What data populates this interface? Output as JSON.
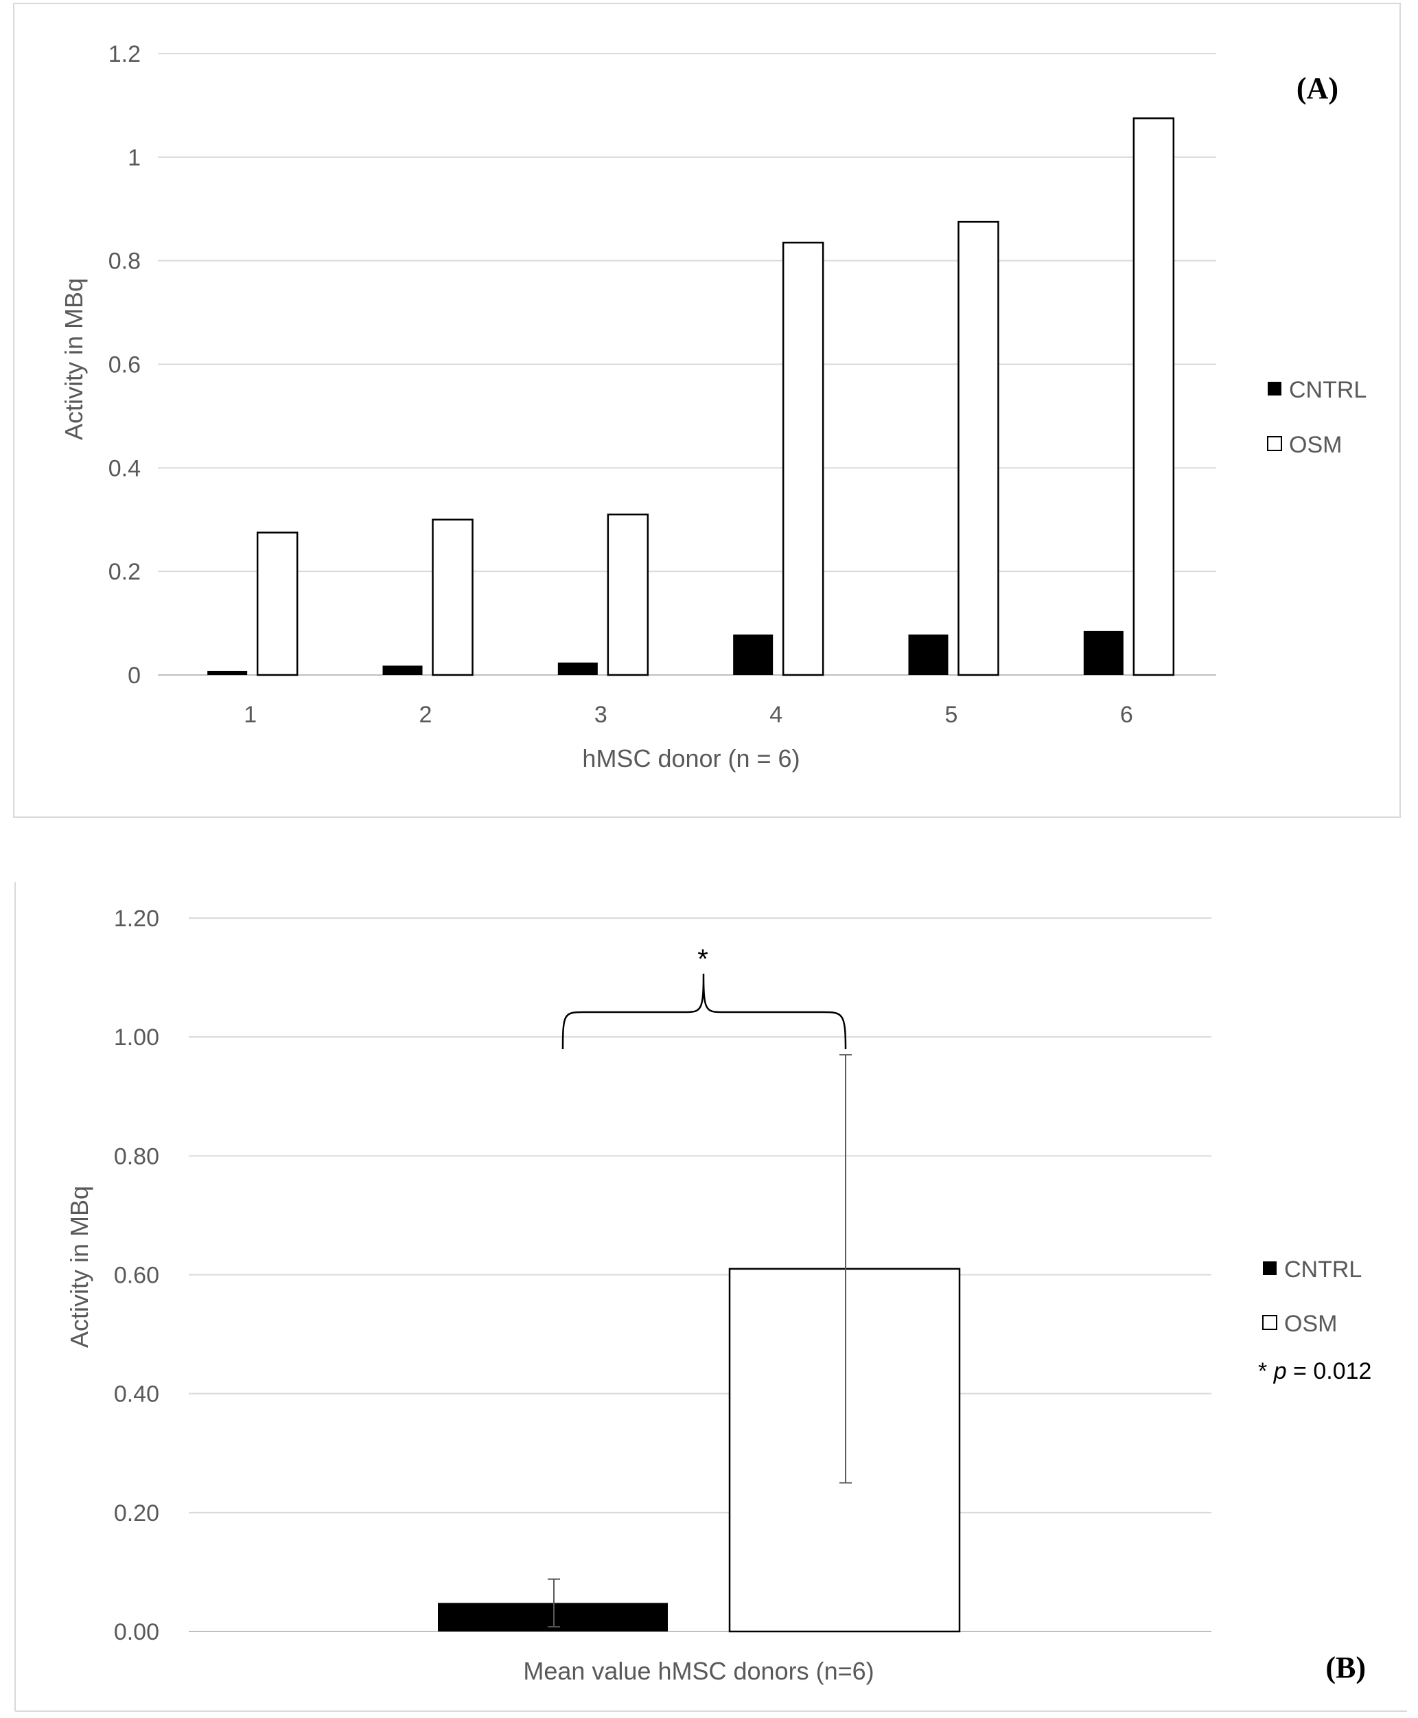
{
  "chart_data": [
    {
      "type": "bar",
      "panel_label": "(A)",
      "categories": [
        "1",
        "2",
        "3",
        "4",
        "5",
        "6"
      ],
      "series": [
        {
          "name": "CNTRL",
          "color": "#000000",
          "values": [
            0.008,
            0.018,
            0.024,
            0.078,
            0.078,
            0.085
          ]
        },
        {
          "name": "OSM",
          "color": "#ffffff",
          "values": [
            0.275,
            0.3,
            0.31,
            0.835,
            0.875,
            1.075
          ]
        }
      ],
      "xlabel": "hMSC donor (n = 6)",
      "ylabel": "Activity in MBq",
      "ylim": [
        0,
        1.2
      ],
      "yticks": [
        "0",
        "0.2",
        "0.4",
        "0.6",
        "0.8",
        "1",
        "1.2"
      ],
      "grid": true,
      "legend": "right"
    },
    {
      "type": "bar",
      "panel_label": "(B)",
      "categories": [
        "Mean value hMSC donors (n=6)"
      ],
      "series": [
        {
          "name": "CNTRL",
          "color": "#000000",
          "values": [
            0.048
          ],
          "error": [
            0.04
          ]
        },
        {
          "name": "OSM",
          "color": "#ffffff",
          "values": [
            0.61
          ],
          "error": [
            0.36
          ]
        }
      ],
      "xlabel": "Mean value hMSC donors (n=6)",
      "ylabel": "Activity in MBq",
      "ylim": [
        0,
        1.2
      ],
      "yticks": [
        "0.00",
        "0.20",
        "0.40",
        "0.60",
        "0.80",
        "1.00",
        "1.20"
      ],
      "grid": true,
      "legend": "right",
      "annotation": {
        "mark": "*",
        "p_prefix": "* ",
        "p_symbol": "p",
        "p_value": " = 0.012"
      }
    }
  ]
}
